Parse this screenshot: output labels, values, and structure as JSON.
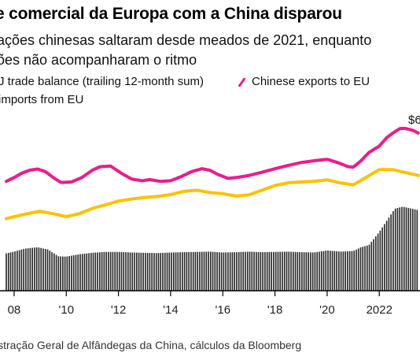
{
  "title": "e comercial da Europa com a China disparou",
  "subtitle_line1": "ações chinesas saltaram desde meados de 2021, enquanto",
  "subtitle_line2": "ões não acompanharam o ritmo",
  "source": "istração Geral de Alfândegas da China, cálculos da Bloomberg",
  "colors": {
    "exports": "#ef1a8b",
    "imports": "#ffc000",
    "balance": "#2a2a2a",
    "axis": "#000000"
  },
  "chart_data": {
    "type": "line",
    "legend": [
      {
        "key": "balance",
        "label": "J trade balance (trailing 12-month sum)"
      },
      {
        "key": "exports",
        "label": "Chinese exports to EU"
      },
      {
        "key": "imports",
        "label": "imports from EU"
      }
    ],
    "annotation": "$6",
    "x_ticks": [
      "08",
      "'10",
      "'12",
      "'14",
      "'16",
      "'18",
      "'20",
      "2022"
    ],
    "x_tick_years": [
      2008,
      2010,
      2012,
      2014,
      2016,
      2018,
      2020,
      2022
    ],
    "xlim": [
      2007.7,
      2023.5
    ],
    "series": [
      {
        "name": "Chinese exports to EU",
        "key": "exports",
        "x": [
          2007.7,
          2008.0,
          2008.3,
          2008.6,
          2008.9,
          2009.2,
          2009.5,
          2009.8,
          2010.2,
          2010.6,
          2011.0,
          2011.3,
          2011.7,
          2012.1,
          2012.5,
          2012.9,
          2013.2,
          2013.6,
          2014.0,
          2014.4,
          2014.8,
          2015.2,
          2015.5,
          2015.8,
          2016.2,
          2016.6,
          2017.0,
          2017.5,
          2018.0,
          2018.5,
          2019.0,
          2019.5,
          2020.0,
          2020.4,
          2020.8,
          2021.0,
          2021.3,
          2021.6,
          2022.0,
          2022.3,
          2022.6,
          2022.8,
          2023.0,
          2023.3,
          2023.5
        ],
        "values": [
          372,
          385,
          400,
          410,
          414,
          405,
          385,
          368,
          370,
          385,
          410,
          422,
          424,
          400,
          380,
          374,
          378,
          372,
          374,
          388,
          405,
          415,
          410,
          396,
          382,
          386,
          392,
          403,
          415,
          426,
          436,
          442,
          447,
          436,
          422,
          420,
          442,
          470,
          492,
          522,
          541,
          552,
          552,
          545,
          536
        ]
      },
      {
        "name": "imports from EU",
        "key": "imports",
        "x": [
          2007.7,
          2008.0,
          2008.5,
          2009.0,
          2009.5,
          2010.0,
          2010.5,
          2011.0,
          2011.5,
          2012.0,
          2012.5,
          2013.0,
          2013.5,
          2014.0,
          2014.5,
          2015.0,
          2015.5,
          2016.0,
          2016.5,
          2017.0,
          2017.5,
          2018.0,
          2018.5,
          2019.0,
          2019.5,
          2020.0,
          2020.5,
          2021.0,
          2021.5,
          2022.0,
          2022.5,
          2023.0,
          2023.5
        ],
        "values": [
          245,
          252,
          262,
          270,
          262,
          252,
          262,
          280,
          292,
          305,
          312,
          317,
          321,
          327,
          338,
          342,
          334,
          330,
          322,
          326,
          342,
          358,
          367,
          370,
          372,
          377,
          367,
          360,
          386,
          412,
          412,
          402,
          392
        ]
      },
      {
        "name": "J trade balance (trailing 12-month sum)",
        "key": "balance",
        "x": [
          2007.7,
          2008.0,
          2008.4,
          2008.9,
          2009.3,
          2009.7,
          2010.0,
          2010.5,
          2011.0,
          2011.5,
          2012.0,
          2012.5,
          2013.0,
          2013.5,
          2014.0,
          2014.5,
          2015.0,
          2015.5,
          2016.0,
          2016.5,
          2017.0,
          2017.5,
          2018.0,
          2018.5,
          2019.0,
          2019.5,
          2020.0,
          2020.5,
          2021.0,
          2021.3,
          2021.6,
          2022.0,
          2022.3,
          2022.6,
          2022.9,
          2023.2,
          2023.5
        ],
        "values": [
          127,
          133,
          143,
          148,
          140,
          117,
          116,
          124,
          129,
          132,
          132,
          130,
          129,
          128,
          130,
          131,
          132,
          133,
          130,
          131,
          133,
          131,
          132,
          133,
          131,
          130,
          137,
          133,
          135,
          148,
          155,
          200,
          240,
          279,
          286,
          280,
          274
        ]
      }
    ]
  }
}
